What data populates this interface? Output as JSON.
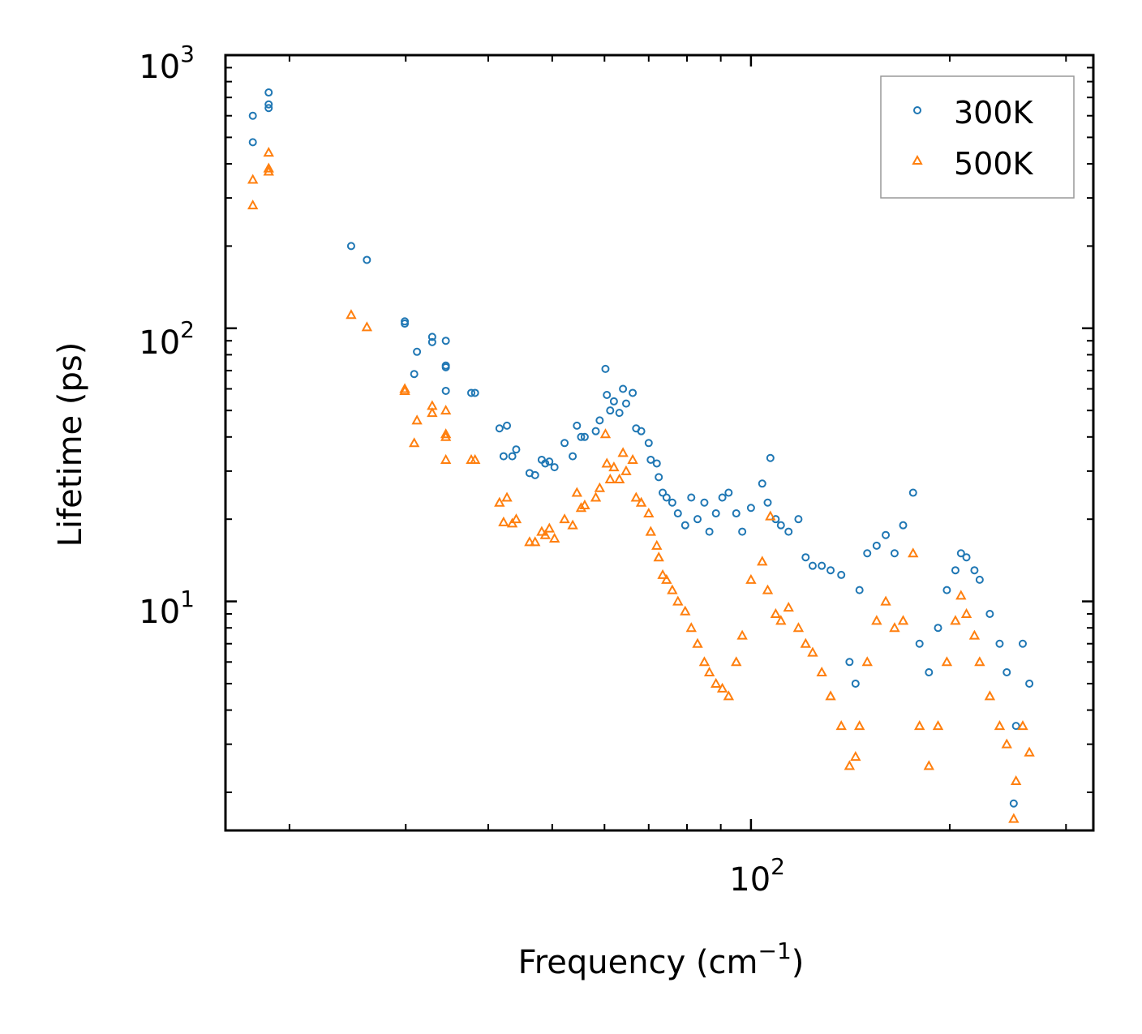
{
  "chart_data": {
    "type": "scatter",
    "title": "",
    "xlabel": "Frequency (cm",
    "xlabel_sup": "−1",
    "xlabel_end": ")",
    "ylabel": "Lifetime (ps)",
    "xscale": "log",
    "yscale": "log",
    "xlim": [
      16,
      330
    ],
    "ylim": [
      1.45,
      1000
    ],
    "x_ticks": [
      {
        "value": 100,
        "base": "10",
        "exp": "2"
      }
    ],
    "y_ticks": [
      {
        "value": 10,
        "base": "10",
        "exp": "1"
      },
      {
        "value": 100,
        "base": "10",
        "exp": "2"
      },
      {
        "value": 1000,
        "base": "10",
        "exp": "3"
      }
    ],
    "legend_position": "top-right",
    "series": [
      {
        "name": "300K",
        "marker": "circle",
        "color": "#1f77b4",
        "points": [
          [
            17.6,
            600
          ],
          [
            17.6,
            480
          ],
          [
            18.6,
            730
          ],
          [
            18.6,
            660
          ],
          [
            18.6,
            640
          ],
          [
            24.8,
            200
          ],
          [
            26.2,
            178
          ],
          [
            29.9,
            106
          ],
          [
            29.9,
            104
          ],
          [
            31.2,
            82
          ],
          [
            30.9,
            68
          ],
          [
            32.9,
            93
          ],
          [
            32.9,
            89
          ],
          [
            34.5,
            90
          ],
          [
            34.5,
            73
          ],
          [
            34.5,
            72
          ],
          [
            34.5,
            59
          ],
          [
            37.7,
            58
          ],
          [
            38.2,
            58
          ],
          [
            41.6,
            43
          ],
          [
            42.2,
            34
          ],
          [
            42.7,
            44
          ],
          [
            43.5,
            34
          ],
          [
            44.1,
            36
          ],
          [
            46.2,
            29.5
          ],
          [
            47.1,
            29
          ],
          [
            48.2,
            33
          ],
          [
            48.8,
            32
          ],
          [
            49.5,
            32.5
          ],
          [
            50.4,
            31
          ],
          [
            52.2,
            38
          ],
          [
            53.7,
            34
          ],
          [
            54.5,
            44
          ],
          [
            55.3,
            40
          ],
          [
            56.0,
            40
          ],
          [
            58.2,
            42
          ],
          [
            59.0,
            46
          ],
          [
            60.2,
            71
          ],
          [
            60.5,
            57
          ],
          [
            61.2,
            50
          ],
          [
            62.0,
            54
          ],
          [
            63.2,
            49
          ],
          [
            64.0,
            60
          ],
          [
            64.7,
            53
          ],
          [
            66.2,
            58
          ],
          [
            67.0,
            43
          ],
          [
            68.2,
            42
          ],
          [
            70.0,
            38
          ],
          [
            70.5,
            33
          ],
          [
            72.0,
            32
          ],
          [
            72.5,
            28.5
          ],
          [
            73.5,
            25
          ],
          [
            74.5,
            24
          ],
          [
            76.0,
            23
          ],
          [
            77.5,
            21
          ],
          [
            79.5,
            19
          ],
          [
            81.2,
            24
          ],
          [
            83.0,
            20
          ],
          [
            85.0,
            23
          ],
          [
            86.5,
            18
          ],
          [
            88.5,
            21
          ],
          [
            90.5,
            24
          ],
          [
            92.5,
            25
          ],
          [
            95.0,
            21
          ],
          [
            97.0,
            18
          ],
          [
            100.0,
            22
          ],
          [
            104.0,
            27
          ],
          [
            106.0,
            23
          ],
          [
            107.0,
            33.5
          ],
          [
            109.0,
            20
          ],
          [
            111.0,
            19
          ],
          [
            114.0,
            18
          ],
          [
            118.0,
            20
          ],
          [
            121.0,
            14.5
          ],
          [
            124.0,
            13.5
          ],
          [
            128.0,
            13.5
          ],
          [
            132.0,
            13
          ],
          [
            137.0,
            12.5
          ],
          [
            141.0,
            6
          ],
          [
            144.0,
            5
          ],
          [
            146.0,
            11
          ],
          [
            150.0,
            15
          ],
          [
            155.0,
            16
          ],
          [
            160.0,
            17.5
          ],
          [
            165.0,
            15
          ],
          [
            170.0,
            19
          ],
          [
            176.0,
            25
          ],
          [
            180.0,
            7
          ],
          [
            186.0,
            5.5
          ],
          [
            192.0,
            8
          ],
          [
            198.0,
            11
          ],
          [
            204.0,
            13
          ],
          [
            208.0,
            15
          ],
          [
            212.0,
            14.5
          ],
          [
            218.0,
            13
          ],
          [
            222.0,
            12
          ],
          [
            230.0,
            9
          ],
          [
            238.0,
            7
          ],
          [
            244.0,
            5.5
          ],
          [
            250.0,
            1.82
          ],
          [
            252.0,
            3.5
          ],
          [
            258.0,
            7
          ],
          [
            264.0,
            5
          ]
        ]
      },
      {
        "name": "500K",
        "marker": "triangle",
        "color": "#ff7f0e",
        "points": [
          [
            17.6,
            350
          ],
          [
            17.6,
            282
          ],
          [
            18.6,
            440
          ],
          [
            18.6,
            385
          ],
          [
            18.6,
            375
          ],
          [
            24.8,
            112
          ],
          [
            26.2,
            101
          ],
          [
            29.9,
            60
          ],
          [
            29.9,
            59
          ],
          [
            31.2,
            46
          ],
          [
            30.9,
            38
          ],
          [
            32.9,
            52
          ],
          [
            32.9,
            49
          ],
          [
            34.5,
            50
          ],
          [
            34.5,
            41
          ],
          [
            34.5,
            40
          ],
          [
            34.5,
            33
          ],
          [
            37.7,
            33
          ],
          [
            38.2,
            33
          ],
          [
            41.6,
            23
          ],
          [
            42.2,
            19.5
          ],
          [
            42.7,
            24
          ],
          [
            43.5,
            19.3
          ],
          [
            44.1,
            20
          ],
          [
            46.2,
            16.5
          ],
          [
            47.1,
            16.5
          ],
          [
            48.2,
            18
          ],
          [
            48.8,
            17.5
          ],
          [
            49.5,
            18.5
          ],
          [
            50.4,
            17
          ],
          [
            52.2,
            20
          ],
          [
            53.7,
            19
          ],
          [
            54.5,
            25
          ],
          [
            55.3,
            22
          ],
          [
            56.0,
            22.5
          ],
          [
            58.2,
            24
          ],
          [
            59.0,
            26
          ],
          [
            60.2,
            41
          ],
          [
            60.5,
            32
          ],
          [
            61.2,
            28
          ],
          [
            62.0,
            31
          ],
          [
            63.2,
            28
          ],
          [
            64.0,
            35
          ],
          [
            64.7,
            30
          ],
          [
            66.2,
            33
          ],
          [
            67.0,
            24
          ],
          [
            68.2,
            23
          ],
          [
            70.0,
            21
          ],
          [
            70.5,
            18
          ],
          [
            72.0,
            16
          ],
          [
            72.5,
            14.5
          ],
          [
            73.5,
            12.5
          ],
          [
            74.5,
            12
          ],
          [
            76.0,
            11
          ],
          [
            77.5,
            10
          ],
          [
            79.5,
            9.2
          ],
          [
            81.2,
            8
          ],
          [
            83.0,
            7
          ],
          [
            85.0,
            6
          ],
          [
            86.5,
            5.5
          ],
          [
            88.5,
            5
          ],
          [
            90.5,
            4.8
          ],
          [
            92.5,
            4.5
          ],
          [
            95.0,
            6
          ],
          [
            97.0,
            7.5
          ],
          [
            100.0,
            12
          ],
          [
            104.0,
            14
          ],
          [
            106.0,
            11
          ],
          [
            107.0,
            20.5
          ],
          [
            109.0,
            9
          ],
          [
            111.0,
            8.5
          ],
          [
            114.0,
            9.5
          ],
          [
            118.0,
            8
          ],
          [
            121.0,
            7
          ],
          [
            124.0,
            6.5
          ],
          [
            128.0,
            5.5
          ],
          [
            132.0,
            4.5
          ],
          [
            137.0,
            3.5
          ],
          [
            141.0,
            2.5
          ],
          [
            144.0,
            2.7
          ],
          [
            146.0,
            3.5
          ],
          [
            150.0,
            6
          ],
          [
            155.0,
            8.5
          ],
          [
            160.0,
            10
          ],
          [
            165.0,
            8
          ],
          [
            170.0,
            8.5
          ],
          [
            176.0,
            15
          ],
          [
            180.0,
            3.5
          ],
          [
            186.0,
            2.5
          ],
          [
            192.0,
            3.5
          ],
          [
            198.0,
            6
          ],
          [
            204.0,
            8.5
          ],
          [
            208.0,
            10.5
          ],
          [
            212.0,
            9
          ],
          [
            218.0,
            7.5
          ],
          [
            222.0,
            6
          ],
          [
            230.0,
            4.5
          ],
          [
            238.0,
            3.5
          ],
          [
            244.0,
            3
          ],
          [
            250.0,
            1.6
          ],
          [
            252.0,
            2.2
          ],
          [
            258.0,
            3.5
          ],
          [
            264.0,
            2.8
          ]
        ]
      }
    ]
  }
}
